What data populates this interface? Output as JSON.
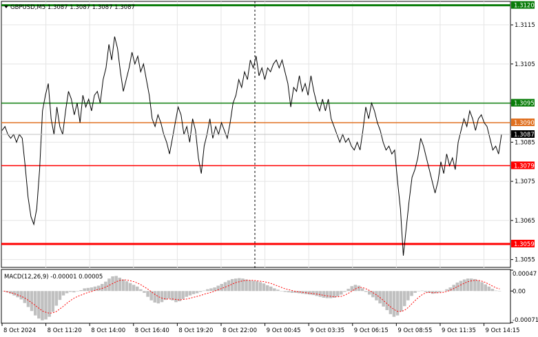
{
  "header": {
    "arrow_icon": "triangle-down-icon",
    "text": "GBPUSD,M5  1.3087 1.3087 1.3087 1.3087"
  },
  "macd_header": {
    "text": "MACD(12,26,9) -0.00001 0.00005"
  },
  "colors": {
    "green_level": "#0a7d0a",
    "orange_level": "#e07020",
    "red_level": "#ff0000",
    "price_line": "#000000",
    "histogram": "#c0c0c0",
    "signal": "#ff0000"
  },
  "price_axis": {
    "ticks": [
      "1.3115",
      "1.3105",
      "1.3095",
      "1.3085",
      "1.3075",
      "1.3065",
      "1.3055"
    ],
    "current_price_tag": "1.3087"
  },
  "levels": [
    {
      "price": "1.3120",
      "kind": "green",
      "thick": true
    },
    {
      "price": "1.3095",
      "kind": "green",
      "thick": false
    },
    {
      "price": "1.3090",
      "kind": "orange",
      "thick": false
    },
    {
      "price": "1.3079",
      "kind": "red",
      "thick": false
    },
    {
      "price": "1.3059",
      "kind": "red",
      "thick": true
    }
  ],
  "macd_axis": {
    "ticks": [
      "0.00047",
      "0.00",
      "-0.00071"
    ]
  },
  "time_axis": {
    "labels": [
      "8 Oct 2024",
      "8 Oct 11:20",
      "8 Oct 14:00",
      "8 Oct 16:40",
      "8 Oct 19:20",
      "8 Oct 22:00",
      "9 Oct 00:45",
      "9 Oct 03:35",
      "9 Oct 06:15",
      "9 Oct 08:55",
      "9 Oct 11:35",
      "9 Oct 14:15"
    ]
  },
  "chart_data": [
    {
      "type": "line",
      "ylim": [
        1.3053,
        1.3121
      ],
      "y": [
        1.3088,
        1.3089,
        1.3087,
        1.3086,
        1.3087,
        1.3085,
        1.3087,
        1.3086,
        1.3079,
        1.3071,
        1.3066,
        1.3064,
        1.3068,
        1.3078,
        1.3093,
        1.3097,
        1.31,
        1.3091,
        1.3087,
        1.3094,
        1.3089,
        1.3087,
        1.3093,
        1.3098,
        1.3096,
        1.3092,
        1.3095,
        1.309,
        1.3097,
        1.3094,
        1.3096,
        1.3093,
        1.3097,
        1.3098,
        1.3095,
        1.3101,
        1.3104,
        1.311,
        1.3106,
        1.3112,
        1.3109,
        1.3103,
        1.3098,
        1.3101,
        1.3104,
        1.3108,
        1.3105,
        1.3107,
        1.3103,
        1.3105,
        1.3101,
        1.3097,
        1.3091,
        1.3089,
        1.3092,
        1.309,
        1.3087,
        1.3085,
        1.3082,
        1.3086,
        1.309,
        1.3094,
        1.3092,
        1.3087,
        1.3089,
        1.3085,
        1.3091,
        1.3088,
        1.3081,
        1.3077,
        1.3084,
        1.3087,
        1.3091,
        1.3086,
        1.3089,
        1.3087,
        1.309,
        1.3088,
        1.3086,
        1.309,
        1.3095,
        1.3097,
        1.3101,
        1.3099,
        1.3103,
        1.3101,
        1.3106,
        1.3104,
        1.3107,
        1.3102,
        1.3104,
        1.3101,
        1.3104,
        1.3103,
        1.3105,
        1.3106,
        1.3104,
        1.3106,
        1.3103,
        1.31,
        1.3094,
        1.3099,
        1.3098,
        1.3102,
        1.3098,
        1.31,
        1.3097,
        1.3102,
        1.3098,
        1.3095,
        1.3093,
        1.3096,
        1.3093,
        1.3096,
        1.3091,
        1.3089,
        1.3087,
        1.3085,
        1.3087,
        1.3085,
        1.3086,
        1.3084,
        1.3083,
        1.3085,
        1.3083,
        1.3088,
        1.3094,
        1.3091,
        1.3095,
        1.3093,
        1.309,
        1.3088,
        1.3085,
        1.3083,
        1.3084,
        1.3082,
        1.3083,
        1.3075,
        1.3068,
        1.3056,
        1.3063,
        1.307,
        1.3076,
        1.3078,
        1.3081,
        1.3086,
        1.3084,
        1.3081,
        1.3078,
        1.3075,
        1.3072,
        1.3075,
        1.308,
        1.3077,
        1.3082,
        1.3079,
        1.3081,
        1.3078,
        1.3085,
        1.3088,
        1.3091,
        1.3089,
        1.3093,
        1.3091,
        1.3088,
        1.3091,
        1.3092,
        1.309,
        1.3089,
        1.3086,
        1.3083,
        1.3084,
        1.3082,
        1.3087
      ]
    },
    {
      "type": "bar",
      "ylim": [
        -0.00071,
        0.00047
      ],
      "histogram": [
        0.0,
        -3e-05,
        -6e-05,
        -0.0001,
        -0.00014,
        -0.00019,
        -0.00027,
        -0.00036,
        -0.00045,
        -0.00055,
        -0.00062,
        -0.00066,
        -0.00064,
        -0.00058,
        -0.00047,
        -0.00033,
        -0.0002,
        -0.0001,
        -5e-05,
        -2e-05,
        -3e-05,
        -1e-05,
        2e-05,
        6e-05,
        7e-05,
        8e-05,
        0.0001,
        0.00012,
        0.00016,
        0.00021,
        0.00028,
        0.00033,
        0.00034,
        0.0003,
        0.00026,
        0.00022,
        0.00018,
        0.00014,
        0.0001,
        4e-05,
        -4e-05,
        -0.00013,
        -0.00021,
        -0.00026,
        -0.00028,
        -0.00025,
        -0.0002,
        -0.00017,
        -0.00021,
        -0.00025,
        -0.00023,
        -0.00018,
        -0.00013,
        -0.0001,
        -7e-05,
        -5e-05,
        -2e-05,
        1e-05,
        4e-05,
        6e-05,
        8e-05,
        0.00012,
        0.00016,
        0.0002,
        0.00024,
        0.00027,
        0.00028,
        0.00029,
        0.00028,
        0.00026,
        0.00024,
        0.00023,
        0.00022,
        0.0002,
        0.00017,
        0.00013,
        0.0001,
        6e-05,
        3e-05,
        0.0,
        -2e-05,
        -3e-05,
        -4e-05,
        -4e-05,
        -5e-05,
        -6e-05,
        -7e-05,
        -8e-05,
        -9e-05,
        -0.00011,
        -0.00013,
        -0.00015,
        -0.00016,
        -0.00016,
        -0.00015,
        -0.00012,
        -8e-05,
        -2e-05,
        5e-05,
        0.00011,
        0.00014,
        0.00012,
        6e-05,
        -2e-05,
        -8e-05,
        -0.00014,
        -0.00021,
        -0.00028,
        -0.00035,
        -0.00043,
        -0.00052,
        -0.00058,
        -0.00055,
        -0.00046,
        -0.00034,
        -0.00021,
        -0.00011,
        -4e-05,
        0.0,
        1e-05,
        -2e-05,
        -4e-05,
        -6e-05,
        -5e-05,
        -3e-05,
        0.0,
        4e-05,
        8e-05,
        0.00014,
        0.00019,
        0.00023,
        0.00026,
        0.00028,
        0.00028,
        0.00027,
        0.00024,
        0.0002,
        0.00015,
        0.0001,
        5e-05,
        1e-05,
        0.0
      ],
      "signal": [
        0.0,
        -2e-05,
        -4e-05,
        -6e-05,
        -9e-05,
        -0.00012,
        -0.00016,
        -0.00021,
        -0.00027,
        -0.00033,
        -0.00039,
        -0.00045,
        -0.00048,
        -0.0005,
        -0.00049,
        -0.00046,
        -0.0004,
        -0.00034,
        -0.00027,
        -0.00021,
        -0.00016,
        -0.00012,
        -9e-05,
        -6e-05,
        -3e-05,
        -1e-05,
        2e-05,
        4e-05,
        6e-05,
        9e-05,
        0.00013,
        0.00017,
        0.00021,
        0.00024,
        0.00025,
        0.00025,
        0.00023,
        0.00021,
        0.00018,
        0.00014,
        9e-05,
        4e-05,
        -2e-05,
        -8e-05,
        -0.00013,
        -0.00016,
        -0.00018,
        -0.00018,
        -0.00018,
        -0.00019,
        -0.0002,
        -0.00019,
        -0.00018,
        -0.00016,
        -0.00014,
        -0.00012,
        -0.0001,
        -7e-05,
        -5e-05,
        -3e-05,
        0.0,
        3e-05,
        6e-05,
        9e-05,
        0.00012,
        0.00016,
        0.00019,
        0.00021,
        0.00023,
        0.00024,
        0.00024,
        0.00024,
        0.00023,
        0.00022,
        0.00021,
        0.00019,
        0.00017,
        0.00014,
        0.00011,
        8e-05,
        5e-05,
        3e-05,
        1e-05,
        -1e-05,
        -2e-05,
        -3e-05,
        -4e-05,
        -5e-05,
        -6e-05,
        -7e-05,
        -8e-05,
        -0.0001,
        -0.00011,
        -0.00012,
        -0.00013,
        -0.00013,
        -0.00012,
        -9e-05,
        -5e-05,
        0.0,
        5e-05,
        8e-05,
        8e-05,
        5e-05,
        1e-05,
        -4e-05,
        -9e-05,
        -0.00015,
        -0.00022,
        -0.00029,
        -0.00036,
        -0.00042,
        -0.00046,
        -0.00046,
        -0.00043,
        -0.00037,
        -0.00029,
        -0.00021,
        -0.00014,
        -8e-05,
        -4e-05,
        -3e-05,
        -4e-05,
        -4e-05,
        -4e-05,
        -3e-05,
        -1e-05,
        2e-05,
        6e-05,
        0.0001,
        0.00014,
        0.00018,
        0.00021,
        0.00023,
        0.00024,
        0.00024,
        0.00022,
        0.00019,
        0.00015,
        0.00011,
        7e-05,
        5e-05
      ]
    }
  ]
}
